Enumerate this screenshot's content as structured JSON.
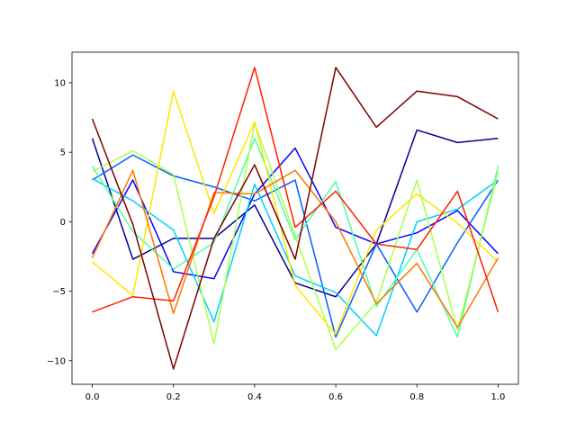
{
  "chart_data": {
    "type": "line",
    "x": [
      0,
      0.1,
      0.2,
      0.3,
      0.4,
      0.5,
      0.6,
      0.7,
      0.8,
      0.9,
      1.0
    ],
    "xlim": [
      -0.05,
      1.05
    ],
    "xticks": [
      {
        "value": 0,
        "label": "0.0"
      },
      {
        "value": 0.2,
        "label": "0.2"
      },
      {
        "value": 0.4,
        "label": "0.4"
      },
      {
        "value": 0.6,
        "label": "0.6"
      },
      {
        "value": 0.8,
        "label": "0.8"
      },
      {
        "value": 1.0,
        "label": "1.0"
      }
    ],
    "ylim": [
      -11.7,
      12.2
    ],
    "yticks": [
      {
        "value": -10,
        "label": "−10"
      },
      {
        "value": -5,
        "label": "−5"
      },
      0,
      5,
      10
    ],
    "series": [
      {
        "color": "#00008f",
        "values": [
          6.0,
          -2.7,
          -1.2,
          -1.2,
          1.2,
          -4.4,
          -5.4,
          -1.6,
          6.6,
          5.7,
          6.0
        ]
      },
      {
        "color": "#0000ff",
        "values": [
          -2.3,
          3.0,
          -3.6,
          -4.1,
          2.0,
          5.3,
          -0.4,
          -1.6,
          -0.8,
          0.8,
          -2.3
        ]
      },
      {
        "color": "#0060ff",
        "values": [
          3.0,
          4.8,
          3.3,
          2.5,
          1.5,
          3.0,
          -8.3,
          -1.6,
          -6.5,
          -1.5,
          3.0
        ]
      },
      {
        "color": "#00d0ff",
        "values": [
          3.1,
          1.5,
          -0.6,
          -7.2,
          2.7,
          -3.9,
          -5.1,
          -8.2,
          0.0,
          0.9,
          3.0
        ]
      },
      {
        "color": "#4dffaa",
        "values": [
          4.0,
          -0.7,
          -3.4,
          -1.5,
          6.0,
          -1.3,
          2.9,
          -6.1,
          -2.0,
          -8.3,
          4.0
        ]
      },
      {
        "color": "#aaff4d",
        "values": [
          3.6,
          5.1,
          3.4,
          -8.8,
          7.1,
          -1.0,
          -9.2,
          -5.8,
          3.0,
          -7.8,
          3.6
        ]
      },
      {
        "color": "#ffe600",
        "values": [
          -2.9,
          -5.3,
          9.4,
          0.6,
          7.2,
          -4.6,
          -8.1,
          -0.6,
          2.0,
          -0.1,
          -2.9
        ]
      },
      {
        "color": "#ff7700",
        "values": [
          -2.6,
          3.7,
          -6.6,
          2.1,
          2.0,
          3.7,
          0.0,
          -5.9,
          -3.0,
          -7.6,
          -2.6
        ]
      },
      {
        "color": "#ff1e00",
        "values": [
          -6.5,
          -5.4,
          -5.7,
          1.8,
          11.1,
          -0.4,
          2.2,
          -1.6,
          -2.0,
          2.2,
          -6.5
        ]
      },
      {
        "color": "#800000",
        "values": [
          7.4,
          -0.2,
          -10.6,
          -1.2,
          4.1,
          -2.7,
          11.1,
          6.8,
          9.4,
          9.0,
          7.4
        ]
      }
    ]
  }
}
